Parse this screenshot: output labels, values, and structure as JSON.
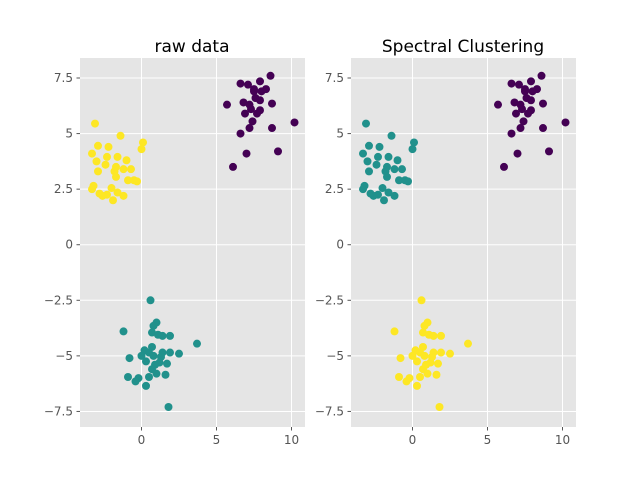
{
  "chart_data": [
    {
      "type": "scatter",
      "title": "raw data",
      "xlabel": "",
      "ylabel": "",
      "xlim": [
        -4.1,
        10.9
      ],
      "ylim": [
        -8.2,
        8.4
      ],
      "xticks": [
        0,
        5,
        10
      ],
      "yticks": [
        -7.5,
        -5.0,
        -2.5,
        0.0,
        2.5,
        5.0,
        7.5
      ],
      "grid": true,
      "series": [
        {
          "color": "#440154",
          "points": [
            [
              6.6,
              7.25
            ],
            [
              7.1,
              7.2
            ],
            [
              7.5,
              7.0
            ],
            [
              7.9,
              7.35
            ],
            [
              8.6,
              7.6
            ],
            [
              6.8,
              6.4
            ],
            [
              7.2,
              6.3
            ],
            [
              7.6,
              6.6
            ],
            [
              8.0,
              6.9
            ],
            [
              7.3,
              6.1
            ],
            [
              7.7,
              5.9
            ],
            [
              6.9,
              5.9
            ],
            [
              7.9,
              6.05
            ],
            [
              7.4,
              5.55
            ],
            [
              5.7,
              6.3
            ],
            [
              8.7,
              6.35
            ],
            [
              6.6,
              5.0
            ],
            [
              7.2,
              5.25
            ],
            [
              8.7,
              5.25
            ],
            [
              10.2,
              5.5
            ],
            [
              6.1,
              3.5
            ],
            [
              7.0,
              4.1
            ],
            [
              9.1,
              4.2
            ],
            [
              7.9,
              6.5
            ],
            [
              8.3,
              7.0
            ],
            [
              7.5,
              6.9
            ]
          ]
        },
        {
          "color": "#21918c",
          "points": [
            [
              0.6,
              -2.5
            ],
            [
              1.0,
              -3.5
            ],
            [
              0.8,
              -3.65
            ],
            [
              0.7,
              -3.95
            ],
            [
              -1.2,
              -3.9
            ],
            [
              1.1,
              -4.05
            ],
            [
              1.4,
              -4.1
            ],
            [
              1.9,
              -4.1
            ],
            [
              3.7,
              -4.45
            ],
            [
              0.7,
              -4.6
            ],
            [
              0.2,
              -4.75
            ],
            [
              0.5,
              -4.85
            ],
            [
              1.4,
              -4.85
            ],
            [
              1.9,
              -4.85
            ],
            [
              2.5,
              -4.9
            ],
            [
              0.0,
              -5.0
            ],
            [
              0.8,
              -5.0
            ],
            [
              1.3,
              -5.05
            ],
            [
              -0.8,
              -5.1
            ],
            [
              0.3,
              -5.25
            ],
            [
              1.2,
              -5.3
            ],
            [
              1.7,
              -5.35
            ],
            [
              0.7,
              -5.6
            ],
            [
              1.0,
              -5.8
            ],
            [
              1.6,
              -5.85
            ],
            [
              -0.9,
              -5.95
            ],
            [
              0.5,
              -5.95
            ],
            [
              -0.2,
              -6.0
            ],
            [
              -0.4,
              -6.15
            ],
            [
              0.3,
              -6.35
            ],
            [
              1.8,
              -7.3
            ],
            [
              0.9,
              -5.4
            ]
          ]
        },
        {
          "color": "#fde725",
          "points": [
            [
              -3.1,
              5.45
            ],
            [
              -1.4,
              4.9
            ],
            [
              -2.9,
              4.45
            ],
            [
              -2.2,
              4.4
            ],
            [
              -3.3,
              4.1
            ],
            [
              -2.3,
              3.95
            ],
            [
              -1.6,
              3.95
            ],
            [
              -1.0,
              3.8
            ],
            [
              0.1,
              4.6
            ],
            [
              0.0,
              4.3
            ],
            [
              -3.0,
              3.75
            ],
            [
              -2.4,
              3.6
            ],
            [
              -1.7,
              3.5
            ],
            [
              -2.9,
              3.3
            ],
            [
              -1.8,
              3.3
            ],
            [
              -1.2,
              3.4
            ],
            [
              -0.7,
              3.4
            ],
            [
              -1.7,
              3.05
            ],
            [
              -0.9,
              2.9
            ],
            [
              -0.5,
              2.9
            ],
            [
              -0.3,
              2.85
            ],
            [
              -3.2,
              2.65
            ],
            [
              -2.0,
              2.55
            ],
            [
              -3.3,
              2.5
            ],
            [
              -1.6,
              2.35
            ],
            [
              -2.3,
              2.25
            ],
            [
              -2.6,
              2.2
            ],
            [
              -1.9,
              2.0
            ],
            [
              -1.2,
              2.2
            ],
            [
              -2.8,
              2.3
            ]
          ]
        }
      ]
    },
    {
      "type": "scatter",
      "title": "Spectral Clustering",
      "xlabel": "",
      "ylabel": "",
      "xlim": [
        -4.1,
        10.9
      ],
      "ylim": [
        -8.2,
        8.4
      ],
      "xticks": [
        0,
        5,
        10
      ],
      "yticks": [
        -7.5,
        -5.0,
        -2.5,
        0.0,
        2.5,
        5.0,
        7.5
      ],
      "grid": true,
      "series": [
        {
          "color": "#440154",
          "points": [
            [
              6.6,
              7.25
            ],
            [
              7.1,
              7.2
            ],
            [
              7.5,
              7.0
            ],
            [
              7.9,
              7.35
            ],
            [
              8.6,
              7.6
            ],
            [
              6.8,
              6.4
            ],
            [
              7.2,
              6.3
            ],
            [
              7.6,
              6.6
            ],
            [
              8.0,
              6.9
            ],
            [
              7.3,
              6.1
            ],
            [
              7.7,
              5.9
            ],
            [
              6.9,
              5.9
            ],
            [
              7.9,
              6.05
            ],
            [
              7.4,
              5.55
            ],
            [
              5.7,
              6.3
            ],
            [
              8.7,
              6.35
            ],
            [
              6.6,
              5.0
            ],
            [
              7.2,
              5.25
            ],
            [
              8.7,
              5.25
            ],
            [
              10.2,
              5.5
            ],
            [
              6.1,
              3.5
            ],
            [
              7.0,
              4.1
            ],
            [
              9.1,
              4.2
            ],
            [
              7.9,
              6.5
            ],
            [
              8.3,
              7.0
            ],
            [
              7.5,
              6.9
            ]
          ]
        },
        {
          "color": "#21918c",
          "points": [
            [
              -3.1,
              5.45
            ],
            [
              -1.4,
              4.9
            ],
            [
              -2.9,
              4.45
            ],
            [
              -2.2,
              4.4
            ],
            [
              -3.3,
              4.1
            ],
            [
              -2.3,
              3.95
            ],
            [
              -1.6,
              3.95
            ],
            [
              -1.0,
              3.8
            ],
            [
              0.1,
              4.6
            ],
            [
              0.0,
              4.3
            ],
            [
              -3.0,
              3.75
            ],
            [
              -2.4,
              3.6
            ],
            [
              -1.7,
              3.5
            ],
            [
              -2.9,
              3.3
            ],
            [
              -1.8,
              3.3
            ],
            [
              -1.2,
              3.4
            ],
            [
              -0.7,
              3.4
            ],
            [
              -1.7,
              3.05
            ],
            [
              -0.9,
              2.9
            ],
            [
              -0.5,
              2.9
            ],
            [
              -0.3,
              2.85
            ],
            [
              -3.2,
              2.65
            ],
            [
              -2.0,
              2.55
            ],
            [
              -3.3,
              2.5
            ],
            [
              -1.6,
              2.35
            ],
            [
              -2.3,
              2.25
            ],
            [
              -2.6,
              2.2
            ],
            [
              -1.9,
              2.0
            ],
            [
              -1.2,
              2.2
            ],
            [
              -2.8,
              2.3
            ]
          ]
        },
        {
          "color": "#fde725",
          "points": [
            [
              0.6,
              -2.5
            ],
            [
              1.0,
              -3.5
            ],
            [
              0.8,
              -3.65
            ],
            [
              0.7,
              -3.95
            ],
            [
              -1.2,
              -3.9
            ],
            [
              1.1,
              -4.05
            ],
            [
              1.4,
              -4.1
            ],
            [
              1.9,
              -4.1
            ],
            [
              3.7,
              -4.45
            ],
            [
              0.7,
              -4.6
            ],
            [
              0.2,
              -4.75
            ],
            [
              0.5,
              -4.85
            ],
            [
              1.4,
              -4.85
            ],
            [
              1.9,
              -4.85
            ],
            [
              2.5,
              -4.9
            ],
            [
              0.0,
              -5.0
            ],
            [
              0.8,
              -5.0
            ],
            [
              1.3,
              -5.05
            ],
            [
              -0.8,
              -5.1
            ],
            [
              0.3,
              -5.25
            ],
            [
              1.2,
              -5.3
            ],
            [
              1.7,
              -5.35
            ],
            [
              0.7,
              -5.6
            ],
            [
              1.0,
              -5.8
            ],
            [
              1.6,
              -5.85
            ],
            [
              -0.9,
              -5.95
            ],
            [
              0.5,
              -5.95
            ],
            [
              -0.2,
              -6.0
            ],
            [
              -0.4,
              -6.15
            ],
            [
              0.3,
              -6.35
            ],
            [
              1.8,
              -7.3
            ],
            [
              0.9,
              -5.4
            ]
          ]
        }
      ]
    }
  ],
  "colors": {
    "axes_background": "#e5e5e5",
    "grid": "#ffffff",
    "tick_text": "#555555"
  }
}
